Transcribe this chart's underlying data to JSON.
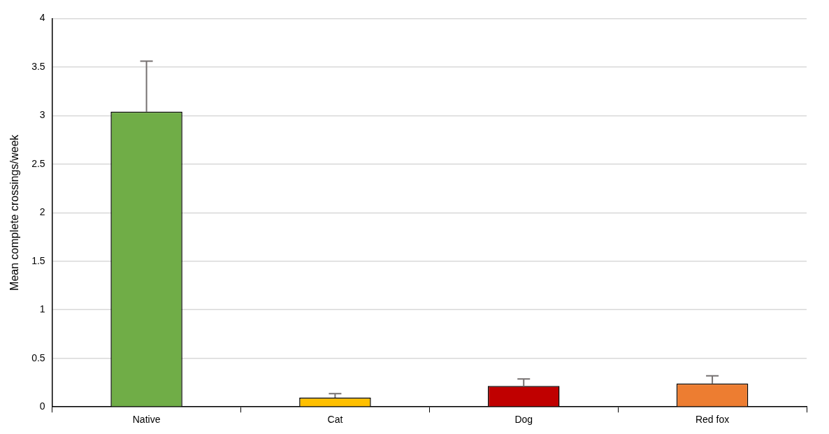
{
  "chart_data": {
    "type": "bar",
    "ylabel": "Mean complete crossings/week",
    "categories": [
      "Native",
      "Cat",
      "Dog",
      "Red fox"
    ],
    "values": [
      3.04,
      0.095,
      0.216,
      0.24
    ],
    "colors": [
      "#70ad47",
      "#ffc000",
      "#c00000",
      "#ed7d31"
    ],
    "errors": [
      [
        3.04,
        3.56
      ],
      [
        0.095,
        0.136
      ],
      [
        0.216,
        0.288
      ],
      [
        0.24,
        0.32
      ]
    ],
    "ylim": [
      0,
      4
    ],
    "yticks": [
      0,
      0.5,
      1,
      1.5,
      2,
      2.5,
      3,
      3.5,
      4
    ],
    "grid": "y",
    "legend": false
  }
}
